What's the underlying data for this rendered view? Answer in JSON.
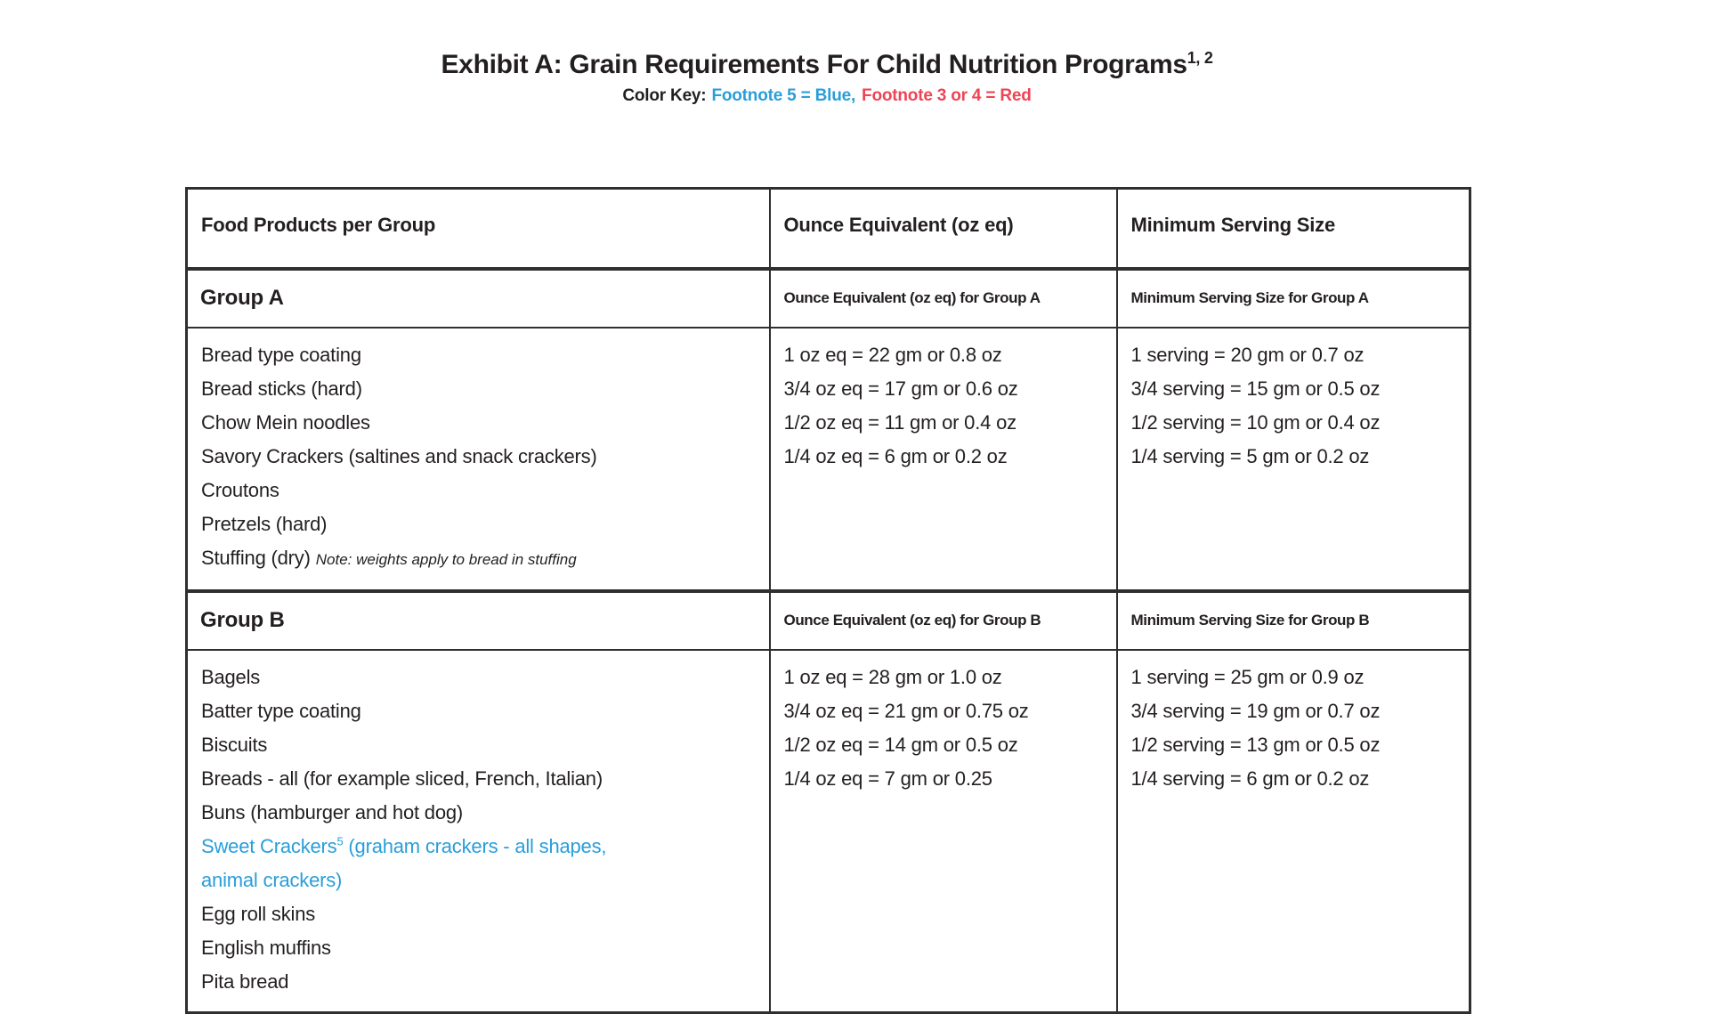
{
  "title": {
    "text": "Exhibit A: Grain Requirements For Child Nutrition Programs",
    "superscript": "1, 2"
  },
  "color_key": {
    "label": "Color Key:",
    "blue_text": "Footnote 5 = Blue,",
    "red_text": "Footnote 3 or 4 = Red",
    "blue_color": "#2a9ed9",
    "red_color": "#ee4454"
  },
  "table": {
    "columns": [
      "Food Products per Group",
      "Ounce Equivalent (oz eq)",
      "Minimum Serving Size"
    ],
    "groups": [
      {
        "name": "Group A",
        "oz_header": "Ounce Equivalent (oz eq) for Group A",
        "serving_header": "Minimum Serving Size for Group A",
        "items": [
          {
            "text": "Bread type coating"
          },
          {
            "text": "Bread sticks (hard)"
          },
          {
            "text": "Chow Mein noodles"
          },
          {
            "text": "Savory Crackers (saltines and snack crackers)"
          },
          {
            "text": "Croutons"
          },
          {
            "text": "Pretzels (hard)"
          },
          {
            "text": "Stuffing (dry)",
            "note": "Note: weights apply to bread in stuffing"
          }
        ],
        "oz_lines": [
          "1 oz eq = 22 gm or 0.8 oz",
          "3/4 oz eq = 17 gm or 0.6 oz",
          "1/2 oz eq = 11 gm or 0.4 oz",
          "1/4 oz eq = 6 gm or 0.2 oz"
        ],
        "serving_lines": [
          "1 serving = 20 gm or 0.7 oz",
          "3/4 serving = 15 gm or 0.5 oz",
          "1/2 serving = 10 gm or 0.4 oz",
          "1/4 serving = 5 gm or 0.2 oz"
        ]
      },
      {
        "name": "Group B",
        "oz_header": "Ounce Equivalent (oz eq) for Group B",
        "serving_header": "Minimum Serving Size for Group B",
        "items": [
          {
            "text": "Bagels"
          },
          {
            "text": "Batter type coating"
          },
          {
            "text": "Biscuits"
          },
          {
            "text": "Breads - all (for example sliced, French, Italian)"
          },
          {
            "text": "Buns (hamburger and hot dog)"
          },
          {
            "text": "Sweet Crackers",
            "sup": "5",
            "tail": " (graham crackers - all shapes,",
            "color": "blue"
          },
          {
            "text": "animal crackers)",
            "color": "blue"
          },
          {
            "text": "Egg roll skins"
          },
          {
            "text": "English muffins"
          },
          {
            "text": "Pita bread"
          }
        ],
        "oz_lines": [
          "1 oz eq = 28 gm or 1.0 oz",
          "3/4 oz eq = 21 gm or 0.75 oz",
          "1/2 oz eq = 14 gm or 0.5 oz",
          "1/4 oz eq = 7 gm or 0.25"
        ],
        "serving_lines": [
          "1 serving = 25 gm or 0.9 oz",
          "3/4 serving = 19 gm or 0.7 oz",
          "1/2 serving = 13 gm or 0.5 oz",
          "1/4 serving = 6 gm or 0.2 oz"
        ]
      }
    ]
  }
}
